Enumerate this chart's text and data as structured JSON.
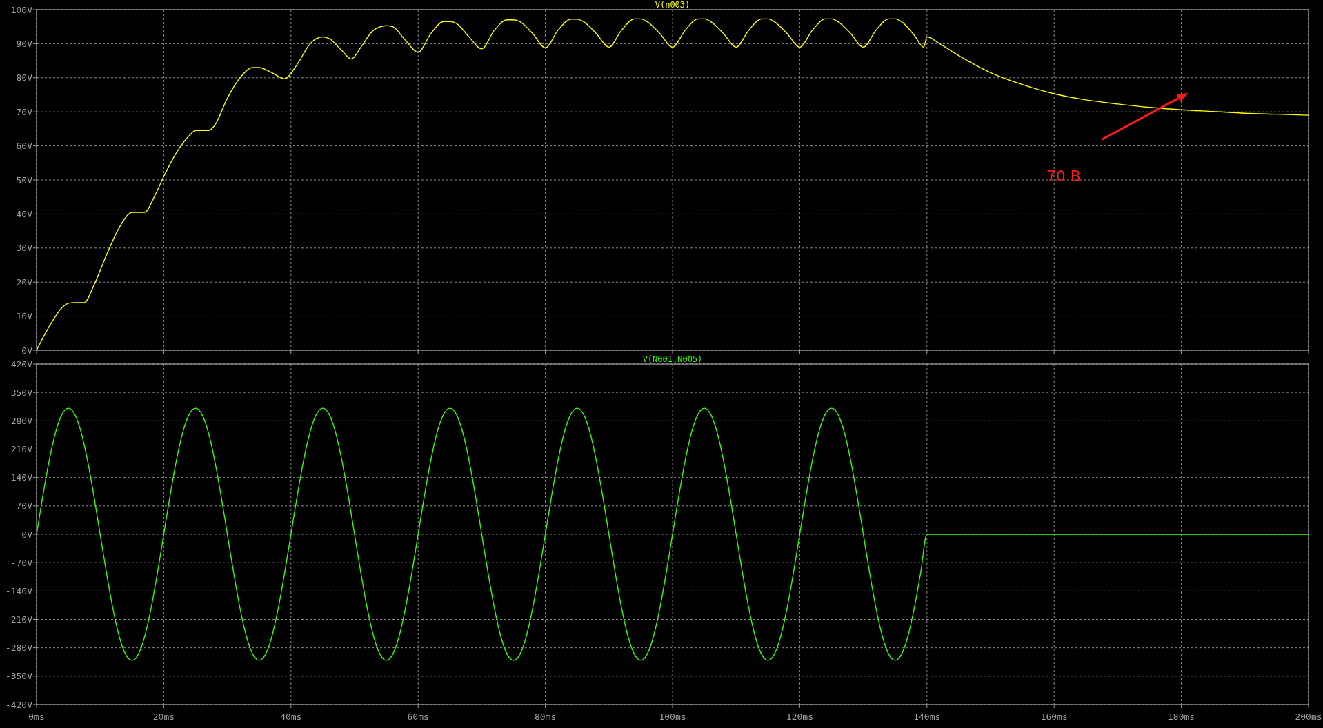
{
  "chart_data": [
    {
      "type": "line",
      "tick_labels": "y",
      "grid": true,
      "xlim": [
        0,
        200
      ],
      "xticks": [
        {
          "value": 0,
          "label": null
        },
        {
          "value": 20,
          "label": null
        },
        {
          "value": 40,
          "label": null
        },
        {
          "value": 60,
          "label": null
        },
        {
          "value": 80,
          "label": null
        },
        {
          "value": 100,
          "label": null
        },
        {
          "value": 120,
          "label": null
        },
        {
          "value": 140,
          "label": null
        },
        {
          "value": 160,
          "label": null
        },
        {
          "value": 180,
          "label": null
        },
        {
          "value": 200,
          "label": null
        }
      ],
      "ylim": [
        0,
        100
      ],
      "yticks": [
        {
          "value": 0,
          "label": "0V"
        },
        {
          "value": 10,
          "label": "10V"
        },
        {
          "value": 20,
          "label": "20V"
        },
        {
          "value": 30,
          "label": "30V"
        },
        {
          "value": 40,
          "label": "40V"
        },
        {
          "value": 50,
          "label": "50V"
        },
        {
          "value": 60,
          "label": "60V"
        },
        {
          "value": 70,
          "label": "70V"
        },
        {
          "value": 80,
          "label": "80V"
        },
        {
          "value": 90,
          "label": "90V"
        },
        {
          "value": 100,
          "label": "100V"
        }
      ],
      "annotations": [
        "70 В"
      ],
      "series": [
        {
          "name": "V(n003)",
          "color": "#ffff00",
          "x": [
            0,
            2,
            4,
            5,
            6,
            7.5,
            9,
            11,
            13,
            14.5,
            15,
            17,
            18.5,
            20,
            22,
            24,
            25,
            27,
            28,
            30,
            32,
            34,
            35,
            37,
            39,
            41,
            43,
            45,
            46,
            48,
            49.5,
            51,
            53,
            55,
            56,
            58,
            60,
            62,
            64,
            65,
            66,
            68,
            70,
            72,
            74,
            75,
            76,
            78,
            80,
            82,
            84,
            85,
            86,
            88,
            90,
            92,
            94,
            95,
            96,
            98,
            100,
            102,
            104,
            105,
            106,
            108,
            110,
            112,
            114,
            115,
            116,
            118,
            120,
            122,
            124,
            125,
            126,
            128,
            130,
            132,
            134,
            135,
            136,
            138,
            139.5,
            140,
            142,
            145,
            150,
            155,
            160,
            165,
            170,
            175,
            180,
            185,
            190,
            195,
            200
          ],
          "values": [
            0,
            7,
            12.5,
            13.8,
            14,
            14,
            19,
            28,
            36,
            40,
            40.5,
            40.5,
            45,
            51,
            58,
            63,
            64.5,
            64.5,
            66,
            74,
            80,
            83,
            83,
            81.5,
            79.7,
            84,
            90,
            92,
            91.5,
            88,
            85.5,
            89,
            94,
            95.3,
            95,
            91,
            87.5,
            93,
            96.5,
            96.5,
            96,
            92,
            88.5,
            94,
            97,
            97,
            96.5,
            93,
            88.8,
            94,
            97.2,
            97.2,
            96.5,
            93,
            89,
            94,
            97.3,
            97.3,
            96.5,
            93,
            89,
            94,
            97.3,
            97.3,
            96.5,
            93,
            89,
            94,
            97.3,
            97.3,
            96.5,
            93,
            89,
            94,
            97.3,
            97.3,
            96.5,
            93,
            89,
            94,
            97.3,
            97.3,
            96.5,
            92.5,
            89,
            92,
            90,
            86.5,
            81.5,
            78,
            75.3,
            73.5,
            72.3,
            71.3,
            70.6,
            70.1,
            69.6,
            69.3,
            69
          ]
        }
      ]
    },
    {
      "type": "line",
      "grid": true,
      "xlim": [
        0,
        200
      ],
      "xticks": [
        {
          "value": 0,
          "label": "0ms"
        },
        {
          "value": 20,
          "label": "20ms"
        },
        {
          "value": 40,
          "label": "40ms"
        },
        {
          "value": 60,
          "label": "60ms"
        },
        {
          "value": 80,
          "label": "80ms"
        },
        {
          "value": 100,
          "label": "100ms"
        },
        {
          "value": 120,
          "label": "120ms"
        },
        {
          "value": 140,
          "label": "140ms"
        },
        {
          "value": 160,
          "label": "160ms"
        },
        {
          "value": 180,
          "label": "180ms"
        },
        {
          "value": 200,
          "label": "200ms"
        }
      ],
      "ylim": [
        -420,
        420
      ],
      "yticks": [
        {
          "value": -420,
          "label": "-420V"
        },
        {
          "value": -350,
          "label": "-350V"
        },
        {
          "value": -280,
          "label": "-280V"
        },
        {
          "value": -210,
          "label": "-210V"
        },
        {
          "value": -140,
          "label": "-140V"
        },
        {
          "value": -70,
          "label": "-70V"
        },
        {
          "value": 0,
          "label": "0V"
        },
        {
          "value": 70,
          "label": "70V"
        },
        {
          "value": 140,
          "label": "140V"
        },
        {
          "value": 210,
          "label": "210V"
        },
        {
          "value": 280,
          "label": "280V"
        },
        {
          "value": 350,
          "label": "350V"
        },
        {
          "value": 420,
          "label": "420V"
        }
      ],
      "series": [
        {
          "name": "V(N001,N005)",
          "color": "#33ff00",
          "x": [
            0,
            1,
            2,
            3,
            4,
            5,
            6,
            7,
            8,
            9,
            10,
            11,
            12,
            13,
            14,
            15,
            16,
            17,
            18,
            19,
            20,
            21,
            22,
            23,
            24,
            25,
            26,
            27,
            28,
            29,
            30,
            31,
            32,
            33,
            34,
            35,
            36,
            37,
            38,
            39,
            40,
            41,
            42,
            43,
            44,
            45,
            46,
            47,
            48,
            49,
            50,
            51,
            52,
            53,
            54,
            55,
            56,
            57,
            58,
            59,
            60,
            61,
            62,
            63,
            64,
            65,
            66,
            67,
            68,
            69,
            70,
            71,
            72,
            73,
            74,
            75,
            76,
            77,
            78,
            79,
            80,
            81,
            82,
            83,
            84,
            85,
            86,
            87,
            88,
            89,
            90,
            91,
            92,
            93,
            94,
            95,
            96,
            97,
            98,
            99,
            100,
            101,
            102,
            103,
            104,
            105,
            106,
            107,
            108,
            109,
            110,
            111,
            112,
            113,
            114,
            115,
            116,
            117,
            118,
            119,
            120,
            121,
            122,
            123,
            124,
            125,
            126,
            127,
            128,
            129,
            130,
            131,
            132,
            133,
            134,
            135,
            136,
            137,
            138,
            139,
            140,
            200
          ],
          "values": [
            0,
            96,
            183,
            252,
            296,
            311,
            296,
            252,
            183,
            96,
            0,
            -96,
            -183,
            -252,
            -296,
            -311,
            -296,
            -252,
            -183,
            -96,
            0,
            96,
            183,
            252,
            296,
            311,
            296,
            252,
            183,
            96,
            0,
            -96,
            -183,
            -252,
            -296,
            -311,
            -296,
            -252,
            -183,
            -96,
            0,
            96,
            183,
            252,
            296,
            311,
            296,
            252,
            183,
            96,
            0,
            -96,
            -183,
            -252,
            -296,
            -311,
            -296,
            -252,
            -183,
            -96,
            0,
            96,
            183,
            252,
            296,
            311,
            296,
            252,
            183,
            96,
            0,
            -96,
            -183,
            -252,
            -296,
            -311,
            -296,
            -252,
            -183,
            -96,
            0,
            96,
            183,
            252,
            296,
            311,
            296,
            252,
            183,
            96,
            0,
            -96,
            -183,
            -252,
            -296,
            -311,
            -296,
            -252,
            -183,
            -96,
            0,
            96,
            183,
            252,
            296,
            311,
            296,
            252,
            183,
            96,
            0,
            -96,
            -183,
            -252,
            -296,
            -311,
            -296,
            -252,
            -183,
            -96,
            0,
            96,
            183,
            252,
            296,
            311,
            296,
            252,
            183,
            96,
            0,
            -96,
            -183,
            -252,
            -296,
            -311,
            -296,
            -252,
            -183,
            -96,
            0,
            0
          ]
        }
      ]
    }
  ]
}
